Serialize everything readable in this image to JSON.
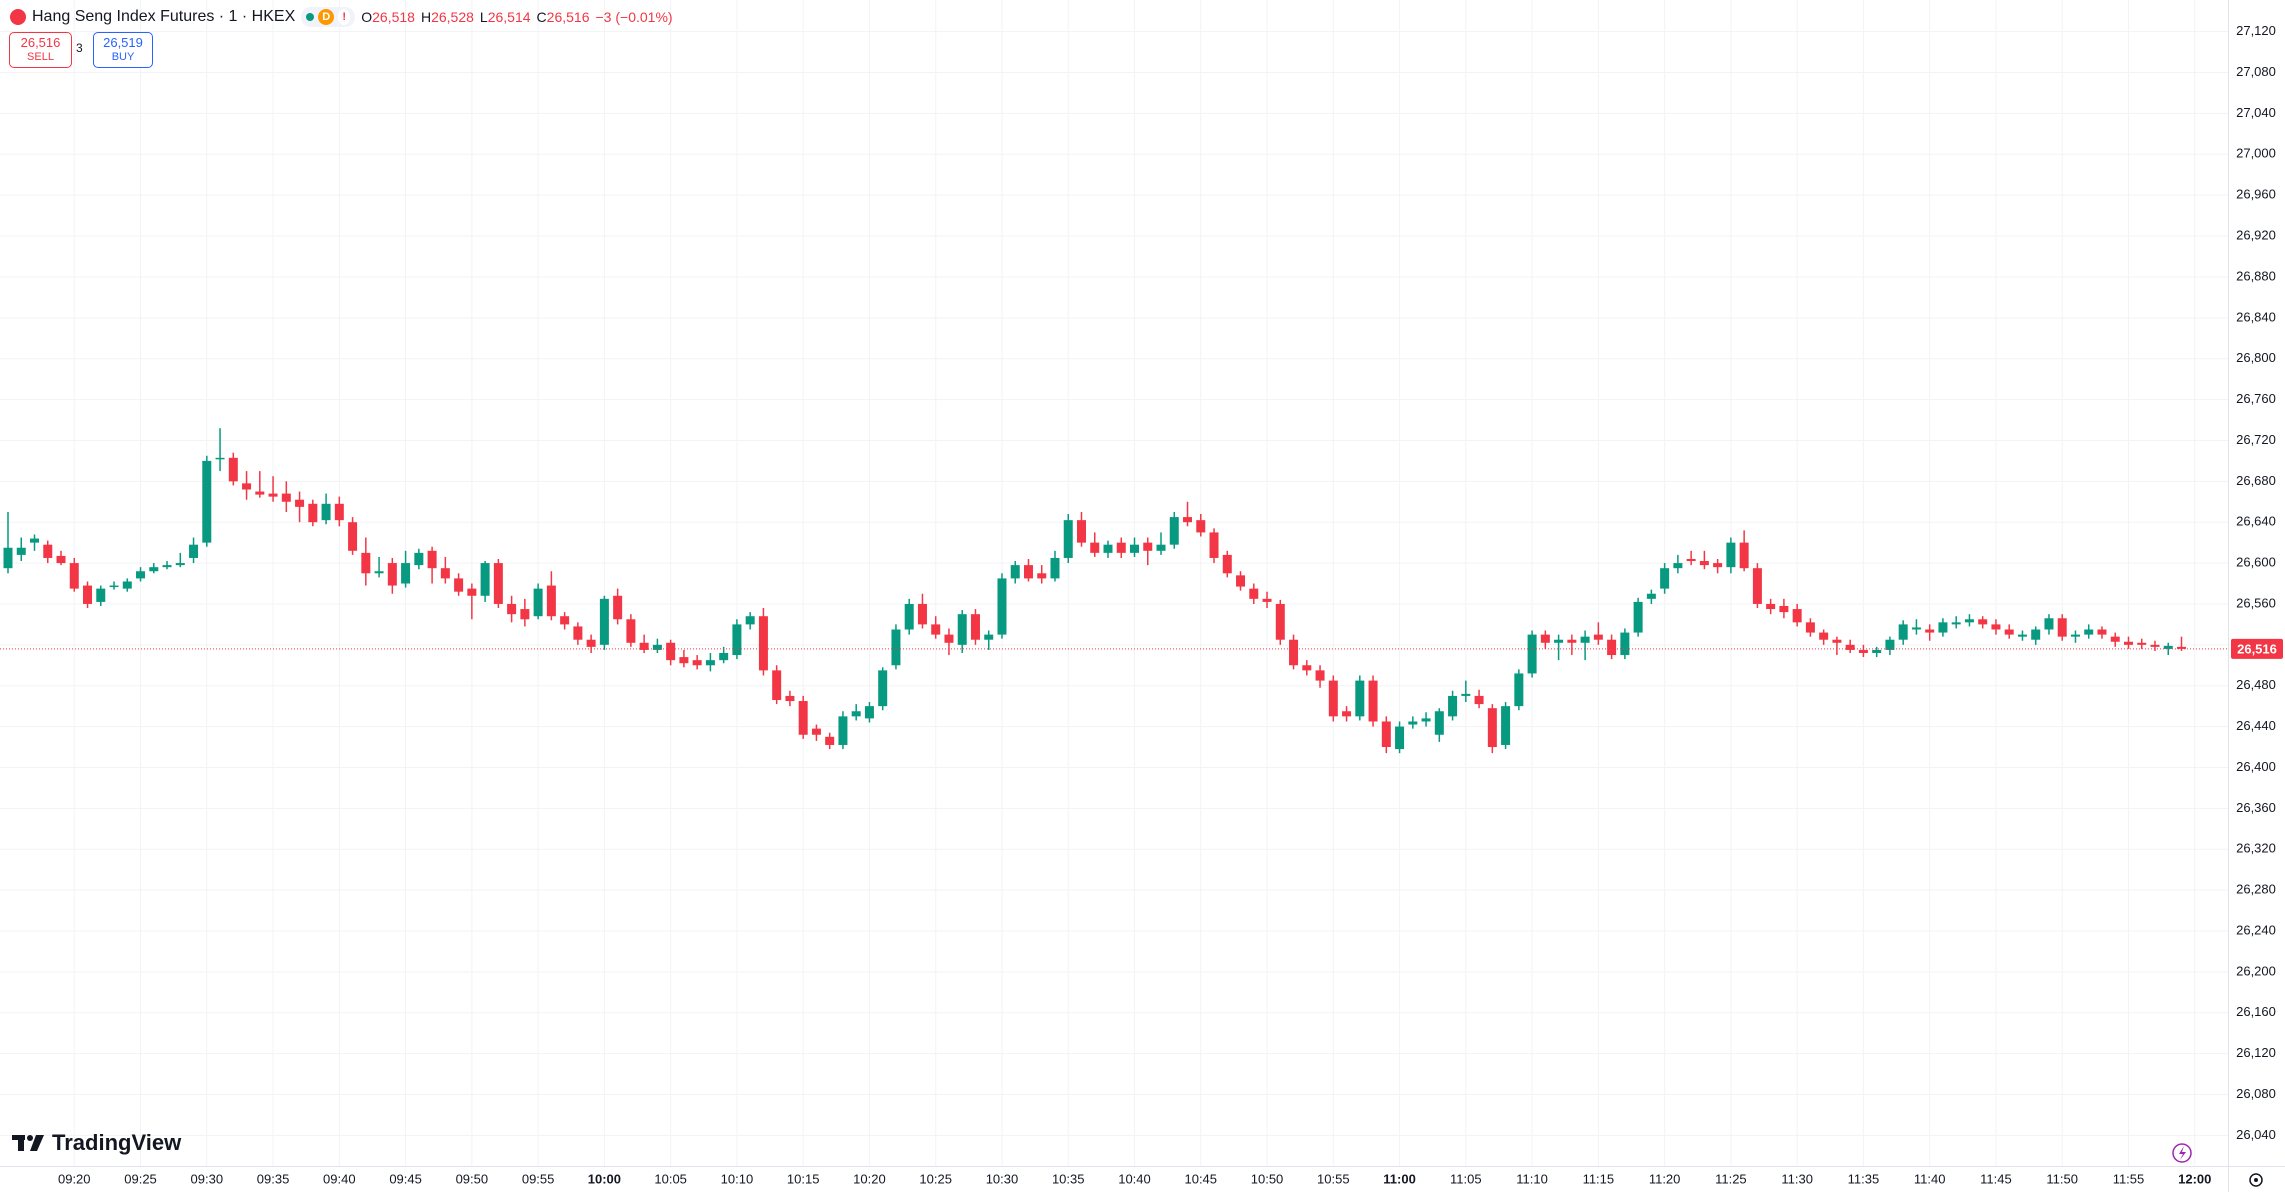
{
  "chart_data": {
    "type": "candlestick",
    "title": "Hang Seng Index Futures · 1 · HKEX",
    "badge": "D",
    "alert": "!",
    "legend": [
      {
        "label": "O",
        "value": "26,518"
      },
      {
        "label": "H",
        "value": "26,528"
      },
      {
        "label": "L",
        "value": "26,514"
      },
      {
        "label": "C",
        "value": "26,516"
      }
    ],
    "change": "−3 (−0.01%)",
    "trade": {
      "sell_price": "26,516",
      "sell": "SELL",
      "spread": "3",
      "buy_price": "26,519",
      "buy": "BUY"
    },
    "brand": "TradingView",
    "up_color": "#089981",
    "down_color": "#f23645",
    "grid": true,
    "last_price": {
      "value": 26516,
      "label": "26,516"
    },
    "categories": [
      null,
      null,
      null,
      null,
      null,
      "09:20",
      null,
      null,
      null,
      null,
      "09:25",
      null,
      null,
      null,
      null,
      "09:30",
      null,
      null,
      null,
      null,
      "09:35",
      null,
      null,
      null,
      null,
      "09:40",
      null,
      null,
      null,
      null,
      "09:45",
      null,
      null,
      null,
      null,
      "09:50",
      null,
      null,
      null,
      null,
      "09:55",
      null,
      null,
      null,
      null,
      "10:00",
      null,
      null,
      null,
      null,
      "10:05",
      null,
      null,
      null,
      null,
      "10:10",
      null,
      null,
      null,
      null,
      "10:15",
      null,
      null,
      null,
      null,
      "10:20",
      null,
      null,
      null,
      null,
      "10:25",
      null,
      null,
      null,
      null,
      "10:30",
      null,
      null,
      null,
      null,
      "10:35",
      null,
      null,
      null,
      null,
      "10:40",
      null,
      null,
      null,
      null,
      "10:45",
      null,
      null,
      null,
      null,
      "10:50",
      null,
      null,
      null,
      null,
      "10:55",
      null,
      null,
      null,
      null,
      "11:00",
      null,
      null,
      null,
      null,
      "11:05",
      null,
      null,
      null,
      null,
      "11:10",
      null,
      null,
      null,
      null,
      "11:15",
      null,
      null,
      null,
      null,
      "11:20",
      null,
      null,
      null,
      null,
      "11:25",
      null,
      null,
      null,
      null,
      "11:30",
      null,
      null,
      null,
      null,
      "11:35",
      null,
      null,
      null,
      null,
      "11:40",
      null,
      null,
      null,
      null,
      "11:45",
      null,
      null,
      null,
      null,
      "11:50",
      null,
      null,
      null,
      null,
      "11:55",
      null,
      null,
      null,
      null,
      "12:00"
    ],
    "ohlc": [
      [
        26595,
        26650,
        26590,
        26615
      ],
      [
        26608,
        26625,
        26602,
        26615
      ],
      [
        26620,
        26628,
        26612,
        26624
      ],
      [
        26618,
        26622,
        26600,
        26605
      ],
      [
        26607,
        26612,
        26598,
        26600
      ],
      [
        26600,
        26605,
        26572,
        26575
      ],
      [
        26578,
        26582,
        26556,
        26560
      ],
      [
        26562,
        26578,
        26558,
        26575
      ],
      [
        26578,
        26582,
        26574,
        26578
      ],
      [
        26575,
        26585,
        26572,
        26582
      ],
      [
        26585,
        26596,
        26582,
        26592
      ],
      [
        26592,
        26600,
        26590,
        26596
      ],
      [
        26596,
        26602,
        26594,
        26598
      ],
      [
        26598,
        26610,
        26596,
        26600
      ],
      [
        26605,
        26625,
        26600,
        26618
      ],
      [
        26620,
        26705,
        26616,
        26700
      ],
      [
        26703,
        26732,
        26690,
        26703
      ],
      [
        26703,
        26708,
        26676,
        26680
      ],
      [
        26678,
        26690,
        26662,
        26672
      ],
      [
        26670,
        26690,
        26664,
        26667
      ],
      [
        26668,
        26685,
        26660,
        26665
      ],
      [
        26668,
        26680,
        26650,
        26660
      ],
      [
        26662,
        26670,
        26640,
        26655
      ],
      [
        26658,
        26662,
        26636,
        26640
      ],
      [
        26642,
        26668,
        26638,
        26658
      ],
      [
        26658,
        26665,
        26636,
        26642
      ],
      [
        26640,
        26645,
        26608,
        26612
      ],
      [
        26610,
        26625,
        26578,
        26590
      ],
      [
        26590,
        26606,
        26586,
        26592
      ],
      [
        26600,
        26605,
        26570,
        26578
      ],
      [
        26580,
        26612,
        26576,
        26600
      ],
      [
        26598,
        26614,
        26594,
        26610
      ],
      [
        26612,
        26616,
        26580,
        26595
      ],
      [
        26595,
        26606,
        26580,
        26585
      ],
      [
        26585,
        26590,
        26568,
        26572
      ],
      [
        26575,
        26580,
        26545,
        26568
      ],
      [
        26568,
        26602,
        26562,
        26600
      ],
      [
        26600,
        26604,
        26556,
        26560
      ],
      [
        26560,
        26568,
        26542,
        26550
      ],
      [
        26555,
        26565,
        26538,
        26545
      ],
      [
        26548,
        26580,
        26545,
        26575
      ],
      [
        26578,
        26592,
        26544,
        26548
      ],
      [
        26548,
        26552,
        26535,
        26540
      ],
      [
        26538,
        26542,
        26520,
        26525
      ],
      [
        26525,
        26530,
        26512,
        26518
      ],
      [
        26520,
        26568,
        26515,
        26565
      ],
      [
        26568,
        26575,
        26540,
        26545
      ],
      [
        26545,
        26550,
        26518,
        26522
      ],
      [
        26522,
        26530,
        26512,
        26515
      ],
      [
        26515,
        26526,
        26512,
        26520
      ],
      [
        26522,
        26525,
        26500,
        26505
      ],
      [
        26508,
        26515,
        26498,
        26502
      ],
      [
        26505,
        26510,
        26496,
        26500
      ],
      [
        26500,
        26512,
        26494,
        26505
      ],
      [
        26505,
        26518,
        26502,
        26512
      ],
      [
        26510,
        26545,
        26506,
        26540
      ],
      [
        26540,
        26552,
        26535,
        26548
      ],
      [
        26548,
        26556,
        26490,
        26495
      ],
      [
        26495,
        26500,
        26462,
        26466
      ],
      [
        26470,
        26475,
        26460,
        26465
      ],
      [
        26465,
        26470,
        26428,
        26432
      ],
      [
        26438,
        26442,
        26426,
        26432
      ],
      [
        26430,
        26434,
        26418,
        26422
      ],
      [
        26422,
        26455,
        26418,
        26450
      ],
      [
        26450,
        26462,
        26446,
        26455
      ],
      [
        26448,
        26464,
        26444,
        26460
      ],
      [
        26460,
        26498,
        26456,
        26495
      ],
      [
        26500,
        26540,
        26496,
        26535
      ],
      [
        26535,
        26565,
        26530,
        26560
      ],
      [
        26560,
        26570,
        26536,
        26540
      ],
      [
        26540,
        26548,
        26526,
        26530
      ],
      [
        26530,
        26536,
        26510,
        26522
      ],
      [
        26520,
        26554,
        26512,
        26550
      ],
      [
        26550,
        26555,
        26520,
        26525
      ],
      [
        26525,
        26534,
        26515,
        26530
      ],
      [
        26530,
        26590,
        26526,
        26585
      ],
      [
        26585,
        26602,
        26580,
        26598
      ],
      [
        26598,
        26604,
        26582,
        26585
      ],
      [
        26590,
        26598,
        26580,
        26585
      ],
      [
        26585,
        26612,
        26582,
        26605
      ],
      [
        26605,
        26648,
        26600,
        26642
      ],
      [
        26642,
        26650,
        26616,
        26620
      ],
      [
        26620,
        26630,
        26606,
        26610
      ],
      [
        26610,
        26622,
        26605,
        26618
      ],
      [
        26620,
        26625,
        26605,
        26610
      ],
      [
        26610,
        26625,
        26606,
        26618
      ],
      [
        26620,
        26625,
        26598,
        26612
      ],
      [
        26612,
        26630,
        26608,
        26618
      ],
      [
        26618,
        26650,
        26614,
        26645
      ],
      [
        26645,
        26660,
        26636,
        26640
      ],
      [
        26642,
        26648,
        26626,
        26630
      ],
      [
        26630,
        26634,
        26600,
        26605
      ],
      [
        26608,
        26612,
        26586,
        26590
      ],
      [
        26588,
        26592,
        26573,
        26577
      ],
      [
        26575,
        26580,
        26560,
        26565
      ],
      [
        26565,
        26572,
        26556,
        26562
      ],
      [
        26560,
        26564,
        26520,
        26525
      ],
      [
        26525,
        26530,
        26496,
        26500
      ],
      [
        26500,
        26505,
        26490,
        26495
      ],
      [
        26495,
        26500,
        26478,
        26485
      ],
      [
        26485,
        26490,
        26445,
        26450
      ],
      [
        26455,
        26460,
        26445,
        26450
      ],
      [
        26450,
        26490,
        26446,
        26485
      ],
      [
        26485,
        26490,
        26440,
        26445
      ],
      [
        26445,
        26450,
        26414,
        26420
      ],
      [
        26418,
        26445,
        26414,
        26440
      ],
      [
        26442,
        26450,
        26438,
        26445
      ],
      [
        26445,
        26454,
        26440,
        26448
      ],
      [
        26432,
        26458,
        26425,
        26455
      ],
      [
        26450,
        26475,
        26446,
        26470
      ],
      [
        26470,
        26485,
        26464,
        26472
      ],
      [
        26470,
        26476,
        26458,
        26462
      ],
      [
        26458,
        26462,
        26414,
        26420
      ],
      [
        26422,
        26464,
        26418,
        26460
      ],
      [
        26460,
        26496,
        26456,
        26492
      ],
      [
        26492,
        26534,
        26488,
        26530
      ],
      [
        26530,
        26534,
        26516,
        26522
      ],
      [
        26522,
        26530,
        26505,
        26525
      ],
      [
        26525,
        26530,
        26510,
        26522
      ],
      [
        26522,
        26534,
        26505,
        26528
      ],
      [
        26530,
        26542,
        26520,
        26525
      ],
      [
        26525,
        26530,
        26506,
        26510
      ],
      [
        26510,
        26536,
        26506,
        26532
      ],
      [
        26532,
        26566,
        26528,
        26562
      ],
      [
        26565,
        26574,
        26560,
        26570
      ],
      [
        26575,
        26600,
        26570,
        26595
      ],
      [
        26595,
        26608,
        26590,
        26600
      ],
      [
        26604,
        26612,
        26598,
        26602
      ],
      [
        26602,
        26612,
        26594,
        26598
      ],
      [
        26600,
        26604,
        26590,
        26596
      ],
      [
        26596,
        26625,
        26590,
        26620
      ],
      [
        26620,
        26632,
        26592,
        26595
      ],
      [
        26595,
        26600,
        26556,
        26560
      ],
      [
        26560,
        26565,
        26550,
        26555
      ],
      [
        26558,
        26565,
        26546,
        26552
      ],
      [
        26555,
        26560,
        26538,
        26542
      ],
      [
        26542,
        26546,
        26528,
        26532
      ],
      [
        26532,
        26535,
        26520,
        26525
      ],
      [
        26525,
        26528,
        26510,
        26522
      ],
      [
        26520,
        26525,
        26512,
        26515
      ],
      [
        26515,
        26520,
        26508,
        26512
      ],
      [
        26512,
        26518,
        26508,
        26515
      ],
      [
        26515,
        26528,
        26510,
        26525
      ],
      [
        26525,
        26544,
        26520,
        26540
      ],
      [
        26535,
        26545,
        26530,
        26537
      ],
      [
        26535,
        26540,
        26524,
        26532
      ],
      [
        26532,
        26546,
        26528,
        26542
      ],
      [
        26540,
        26548,
        26536,
        26542
      ],
      [
        26542,
        26550,
        26538,
        26545
      ],
      [
        26545,
        26548,
        26536,
        26540
      ],
      [
        26540,
        26545,
        26530,
        26535
      ],
      [
        26535,
        26540,
        26526,
        26530
      ],
      [
        26528,
        26534,
        26524,
        26530
      ],
      [
        26525,
        26538,
        26520,
        26535
      ],
      [
        26535,
        26550,
        26530,
        26546
      ],
      [
        26546,
        26550,
        26524,
        26528
      ],
      [
        26528,
        26534,
        26522,
        26530
      ],
      [
        26530,
        26540,
        26526,
        26535
      ],
      [
        26535,
        26538,
        26526,
        26530
      ],
      [
        26528,
        26532,
        26518,
        26523
      ],
      [
        26523,
        26528,
        26516,
        26520
      ],
      [
        26522,
        26526,
        26516,
        26520
      ],
      [
        26520,
        26524,
        26514,
        26518
      ],
      [
        26516,
        26522,
        26510,
        26519
      ],
      [
        26518,
        26528,
        26514,
        26516
      ],
      null
    ],
    "ylim": [
      26010,
      27151
    ],
    "yticks": [
      {
        "value": 26040,
        "label": "26,040"
      },
      {
        "value": 26080,
        "label": "26,080"
      },
      {
        "value": 26120,
        "label": "26,120"
      },
      {
        "value": 26160,
        "label": "26,160"
      },
      {
        "value": 26200,
        "label": "26,200"
      },
      {
        "value": 26240,
        "label": "26,240"
      },
      {
        "value": 26280,
        "label": "26,280"
      },
      {
        "value": 26320,
        "label": "26,320"
      },
      {
        "value": 26360,
        "label": "26,360"
      },
      {
        "value": 26400,
        "label": "26,400"
      },
      {
        "value": 26440,
        "label": "26,440"
      },
      {
        "value": 26480,
        "label": "26,480"
      },
      {
        "value": 26520,
        "label": "26,520"
      },
      {
        "value": 26560,
        "label": "26,560"
      },
      {
        "value": 26600,
        "label": "26,600"
      },
      {
        "value": 26640,
        "label": "26,640"
      },
      {
        "value": 26680,
        "label": "26,680"
      },
      {
        "value": 26720,
        "label": "26,720"
      },
      {
        "value": 26760,
        "label": "26,760"
      },
      {
        "value": 26800,
        "label": "26,800"
      },
      {
        "value": 26840,
        "label": "26,840"
      },
      {
        "value": 26880,
        "label": "26,880"
      },
      {
        "value": 26920,
        "label": "26,920"
      },
      {
        "value": 26960,
        "label": "26,960"
      },
      {
        "value": 27000,
        "label": "27,000"
      },
      {
        "value": 27040,
        "label": "27,040"
      },
      {
        "value": 27080,
        "label": "27,080"
      },
      {
        "value": 27120,
        "label": "27,120"
      }
    ]
  }
}
